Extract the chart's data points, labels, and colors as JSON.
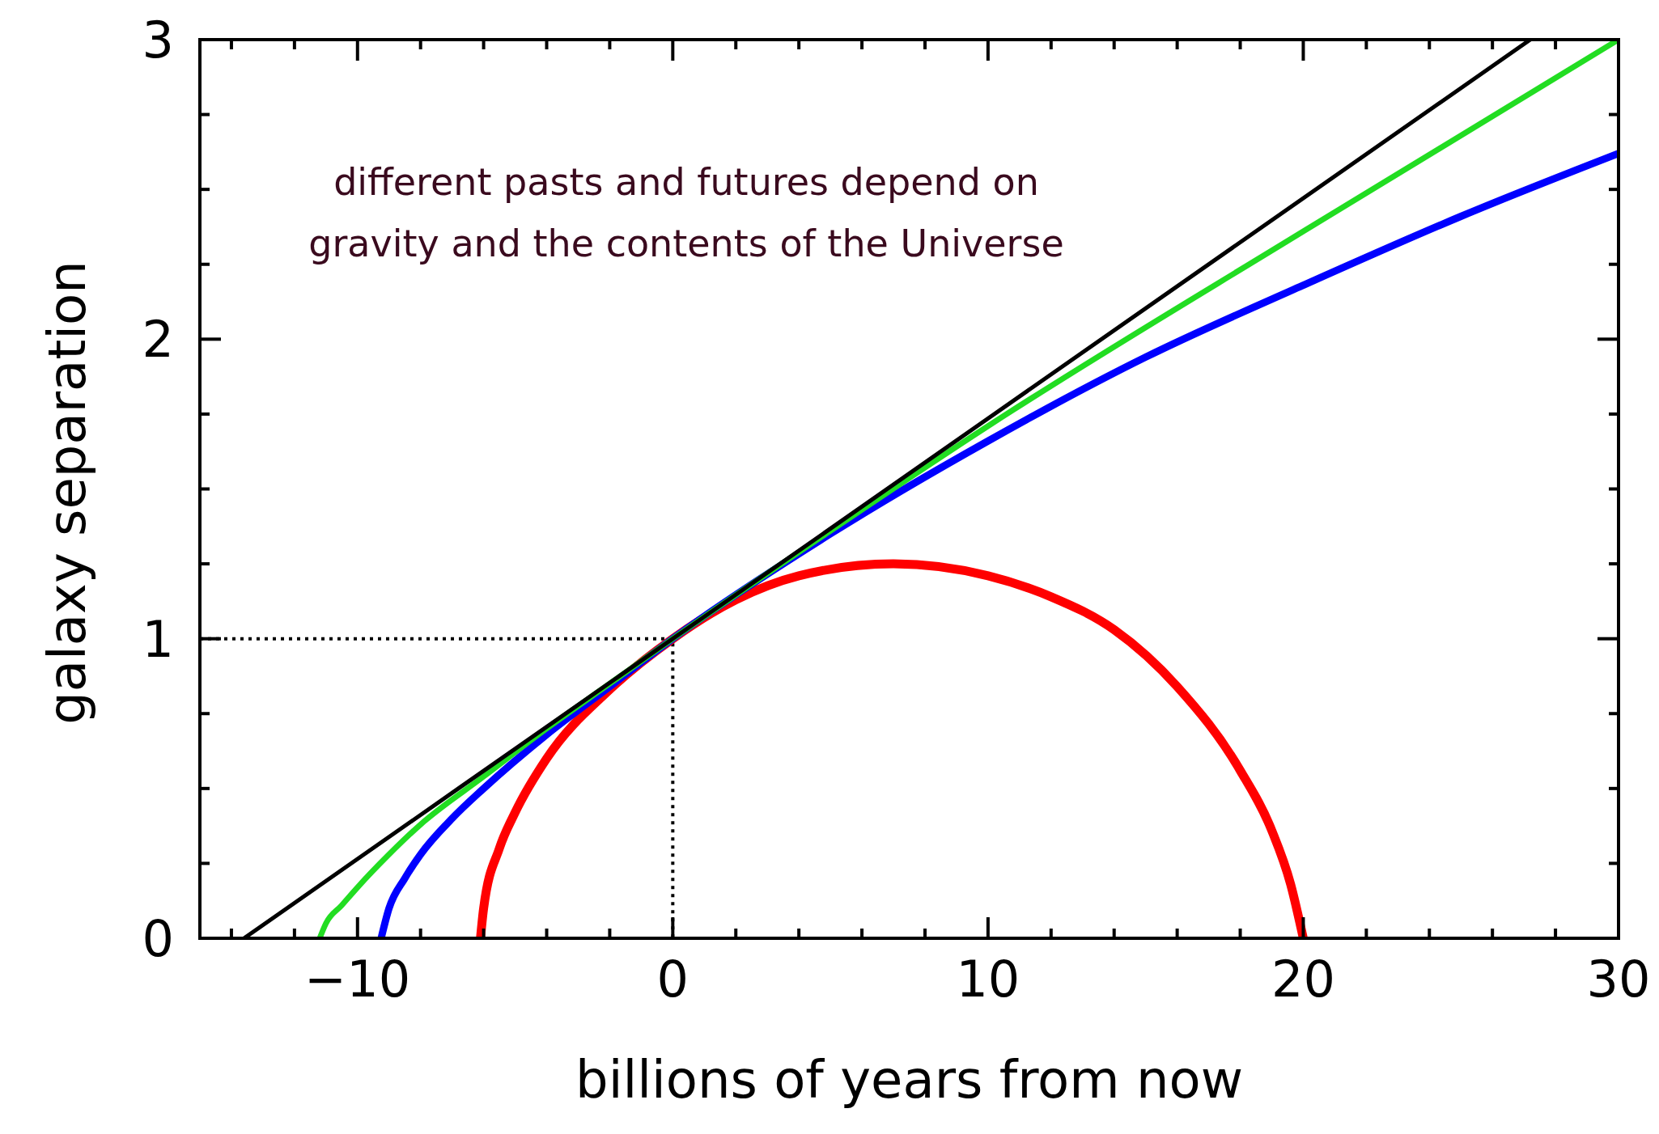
{
  "chart_data": {
    "type": "line",
    "xlabel": "billions of years from now",
    "ylabel": "galaxy separation",
    "annotations": [
      "different pasts and futures depend on gravity and the contents of the Universe"
    ],
    "xlim": [
      -15,
      30
    ],
    "ylim": [
      0,
      3
    ],
    "xticks": [
      {
        "value": -14,
        "label": null
      },
      {
        "value": -12,
        "label": null
      },
      -10,
      {
        "value": -8,
        "label": null
      },
      {
        "value": -6,
        "label": null
      },
      {
        "value": -4,
        "label": null
      },
      {
        "value": -2,
        "label": null
      },
      0,
      {
        "value": 2,
        "label": null
      },
      {
        "value": 4,
        "label": null
      },
      {
        "value": 6,
        "label": null
      },
      {
        "value": 8,
        "label": null
      },
      10,
      {
        "value": 12,
        "label": null
      },
      {
        "value": 14,
        "label": null
      },
      {
        "value": 16,
        "label": null
      },
      {
        "value": 18,
        "label": null
      },
      20,
      {
        "value": 22,
        "label": null
      },
      {
        "value": 24,
        "label": null
      },
      {
        "value": 26,
        "label": null
      },
      {
        "value": 28,
        "label": null
      },
      30
    ],
    "yticks": [
      0,
      {
        "value": 0.25,
        "label": null
      },
      {
        "value": 0.5,
        "label": null
      },
      {
        "value": 0.75,
        "label": null
      },
      1,
      {
        "value": 1.25,
        "label": null
      },
      {
        "value": 1.5,
        "label": null
      },
      {
        "value": 1.75,
        "label": null
      },
      2,
      {
        "value": 2.25,
        "label": null
      },
      {
        "value": 2.5,
        "label": null
      },
      {
        "value": 2.75,
        "label": null
      },
      3
    ],
    "marker": "none",
    "series": [
      {
        "color": "#000000",
        "line_style": "dotted",
        "x": [
          -15,
          0,
          0
        ],
        "values": [
          1,
          1,
          0
        ]
      },
      {
        "color": "#ff0000",
        "x": [
          -6.1,
          -6,
          -5.5,
          -5,
          -4,
          -2,
          0,
          2,
          4,
          7,
          10,
          12,
          14,
          16,
          18,
          19,
          19.6,
          20
        ],
        "values": [
          0,
          0.1,
          0.3,
          0.42,
          0.6,
          0.83,
          1,
          1.13,
          1.21,
          1.25,
          1.21,
          1.14,
          1.03,
          0.84,
          0.56,
          0.36,
          0.18,
          0
        ]
      },
      {
        "color": "#0000ff",
        "x": [
          -9.25,
          -9,
          -8.5,
          -8,
          -7,
          -6,
          -4,
          -2,
          0,
          5,
          10,
          15,
          20,
          25,
          30
        ],
        "values": [
          0,
          0.1,
          0.2,
          0.28,
          0.4,
          0.5,
          0.68,
          0.84,
          1,
          1.35,
          1.66,
          1.94,
          2.18,
          2.41,
          2.62
        ]
      },
      {
        "color": "#22dd22",
        "x": [
          -11.2,
          -11,
          -10.5,
          -10,
          -9,
          -8,
          -6,
          -4,
          -2,
          0,
          5,
          10,
          20,
          30
        ],
        "values": [
          0,
          0.05,
          0.11,
          0.17,
          0.28,
          0.38,
          0.54,
          0.7,
          0.85,
          1,
          1.36,
          1.71,
          2.36,
          3
        ]
      },
      {
        "color": "#000000",
        "x": [
          -13.6,
          0,
          27.2
        ],
        "values": [
          0,
          1,
          3
        ]
      }
    ]
  }
}
